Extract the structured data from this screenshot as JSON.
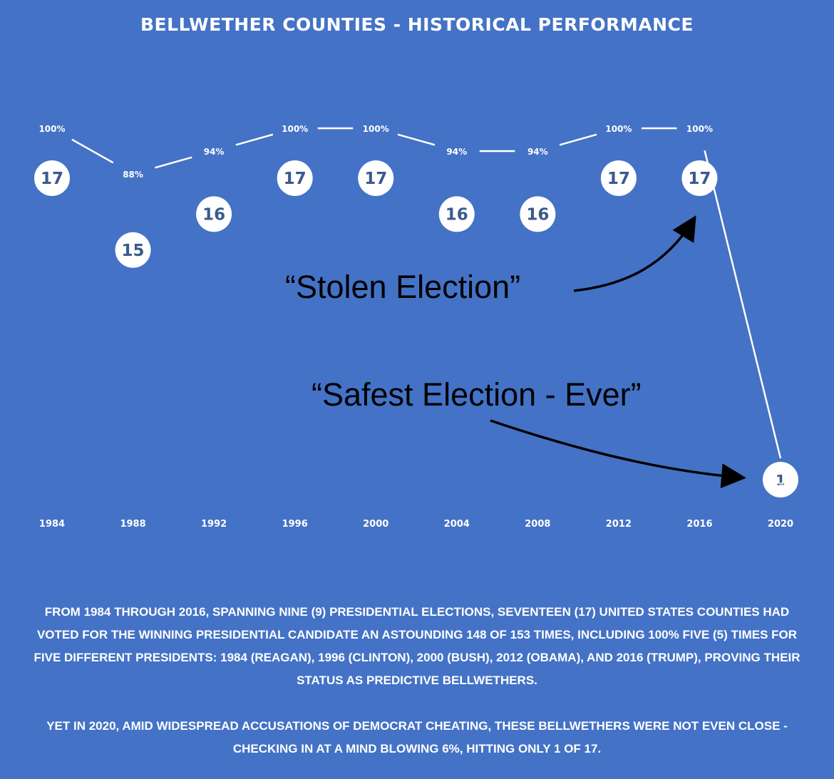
{
  "chart_data": {
    "type": "line",
    "title": "BELLWETHER COUNTIES - HISTORICAL PERFORMANCE",
    "x": [
      "1984",
      "1988",
      "1992",
      "1996",
      "2000",
      "2004",
      "2008",
      "2012",
      "2016",
      "2020"
    ],
    "series": [
      {
        "percent_labels": [
          "100%",
          "88%",
          "94%",
          "100%",
          "100%",
          "94%",
          "94%",
          "100%",
          "100%",
          "6%"
        ],
        "values": [
          100,
          88,
          94,
          100,
          100,
          94,
          94,
          100,
          100,
          6
        ],
        "counts": [
          "17",
          "15",
          "16",
          "17",
          "17",
          "16",
          "16",
          "17",
          "17",
          "1"
        ]
      }
    ],
    "ylim": [
      0,
      100
    ],
    "grid": false,
    "annotations": [
      {
        "text": "“Stolen Election”",
        "points_to": "2016"
      },
      {
        "text": "“Safest Election - Ever”",
        "points_to": "2020"
      }
    ]
  },
  "footer": {
    "paragraph_1": "FROM 1984 THROUGH 2016, SPANNING NINE (9) PRESIDENTIAL ELECTIONS, SEVENTEEN (17) UNITED STATES COUNTIES HAD VOTED FOR THE WINNING PRESIDENTIAL CANDIDATE AN ASTOUNDING 148 OF 153 TIMES, INCLUDING 100% FIVE (5) TIMES FOR FIVE DIFFERENT PRESIDENTS: 1984 (REAGAN), 1996 (CLINTON), 2000 (BUSH), 2012 (OBAMA), AND 2016 (TRUMP), PROVING THEIR STATUS AS PREDICTIVE BELLWETHERS.",
    "paragraph_2": "YET IN 2020, AMID WIDESPREAD ACCUSATIONS OF DEMOCRAT CHEATING, THESE BELLWETHERS WERE NOT EVEN CLOSE - CHECKING IN AT A MIND BLOWING 6%, HITTING ONLY 1 OF 17."
  },
  "colors": {
    "background": "#4472c6",
    "line": "#ffffff",
    "circle_text": "#3a5a8c",
    "annotation": "#000000"
  }
}
